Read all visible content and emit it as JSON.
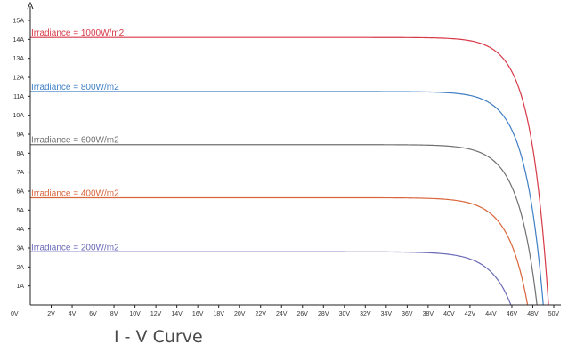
{
  "chart_data": {
    "type": "line",
    "title": "I - V Curve",
    "x_ticks": [
      "0V",
      "2V",
      "4V",
      "6V",
      "8V",
      "10V",
      "12V",
      "14V",
      "16V",
      "18V",
      "20V",
      "22V",
      "24V",
      "26V",
      "28V",
      "30V",
      "32V",
      "34V",
      "36V",
      "38V",
      "40V",
      "42V",
      "44V",
      "46V",
      "48V",
      "50V"
    ],
    "y_ticks": [
      "0V",
      "1A",
      "2A",
      "3A",
      "4A",
      "5A",
      "6A",
      "7A",
      "8A",
      "9A",
      "10A",
      "11A",
      "12A",
      "13A",
      "14A",
      "15A"
    ],
    "xlim": [
      0,
      50
    ],
    "ylim": [
      0,
      15
    ],
    "grid": false,
    "series": [
      {
        "name": "Irradiance = 1000W/m2",
        "color": "#d63a47",
        "isc": 14.1,
        "voc": 49.5,
        "k": 1.7
      },
      {
        "name": "Irradiance = 800W/m2",
        "color": "#3f7fc6",
        "isc": 11.25,
        "voc": 49.0,
        "k": 1.75
      },
      {
        "name": "Irradiance = 600W/m2",
        "color": "#707070",
        "isc": 8.45,
        "voc": 48.4,
        "k": 1.8
      },
      {
        "name": "Irradiance = 400W/m2",
        "color": "#d9653a",
        "isc": 5.65,
        "voc": 47.5,
        "k": 1.85
      },
      {
        "name": "Irradiance = 200W/m2",
        "color": "#6a6ab8",
        "isc": 2.8,
        "voc": 45.9,
        "k": 1.95
      }
    ]
  }
}
